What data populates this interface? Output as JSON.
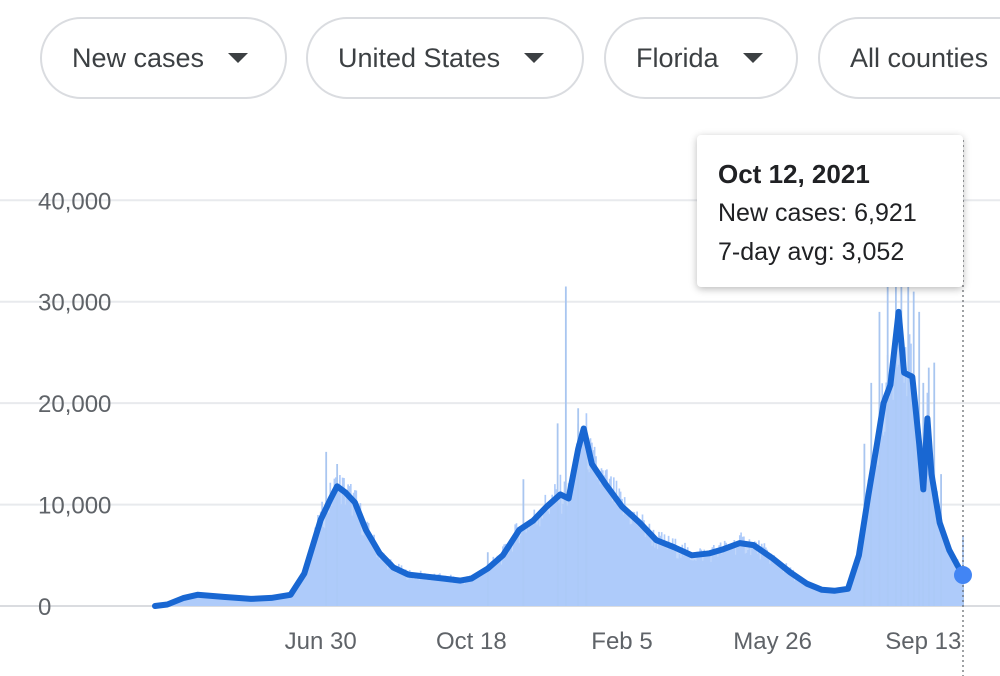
{
  "filters": [
    {
      "label": "New cases"
    },
    {
      "label": "United States"
    },
    {
      "label": "Florida"
    },
    {
      "label": "All counties"
    }
  ],
  "tooltip": {
    "date": "Oct 12, 2021",
    "new_cases_text": "New cases: 6,921",
    "avg_text": "7-day avg: 3,052"
  },
  "colors": {
    "line": "#1967d2",
    "bars": "#aecbfa",
    "grid": "#e8eaed",
    "marker": "#4285f4"
  },
  "chart_data": {
    "type": "bar",
    "title": "",
    "xlabel": "",
    "ylabel": "",
    "ylim": [
      0,
      42000
    ],
    "yticks": [
      0,
      10000,
      20000,
      30000,
      40000
    ],
    "ytick_labels": [
      "0",
      "10,000",
      "20,000",
      "30,000",
      "40,000"
    ],
    "xlim": [
      "2020-03-01",
      "2021-10-12"
    ],
    "xticks": [
      {
        "date": "2020-06-30",
        "label": "Jun 30"
      },
      {
        "date": "2020-10-18",
        "label": "Oct 18"
      },
      {
        "date": "2021-02-05",
        "label": "Feb 5"
      },
      {
        "date": "2021-05-26",
        "label": "May 26"
      },
      {
        "date": "2021-09-13",
        "label": "Sep 13"
      }
    ],
    "series": [
      {
        "kind": "line",
        "points": [
          [
            "2020-03-01",
            0
          ],
          [
            "2020-03-10",
            150
          ],
          [
            "2020-03-22",
            800
          ],
          [
            "2020-04-01",
            1100
          ],
          [
            "2020-04-20",
            900
          ],
          [
            "2020-05-10",
            700
          ],
          [
            "2020-05-25",
            800
          ],
          [
            "2020-06-08",
            1100
          ],
          [
            "2020-06-18",
            3200
          ],
          [
            "2020-06-30",
            8500
          ],
          [
            "2020-07-07",
            10500
          ],
          [
            "2020-07-12",
            11800
          ],
          [
            "2020-07-18",
            11200
          ],
          [
            "2020-07-25",
            10200
          ],
          [
            "2020-08-02",
            7500
          ],
          [
            "2020-08-12",
            5200
          ],
          [
            "2020-08-22",
            3800
          ],
          [
            "2020-09-02",
            3100
          ],
          [
            "2020-09-15",
            2900
          ],
          [
            "2020-09-28",
            2700
          ],
          [
            "2020-10-10",
            2500
          ],
          [
            "2020-10-18",
            2700
          ],
          [
            "2020-10-30",
            3700
          ],
          [
            "2020-11-10",
            5000
          ],
          [
            "2020-11-22",
            7500
          ],
          [
            "2020-12-02",
            8400
          ],
          [
            "2020-12-12",
            9800
          ],
          [
            "2020-12-22",
            11000
          ],
          [
            "2020-12-28",
            10600
          ],
          [
            "2021-01-04",
            15500
          ],
          [
            "2021-01-08",
            17500
          ],
          [
            "2021-01-14",
            14000
          ],
          [
            "2021-01-24",
            12000
          ],
          [
            "2021-02-05",
            9800
          ],
          [
            "2021-02-18",
            8200
          ],
          [
            "2021-03-02",
            6500
          ],
          [
            "2021-03-15",
            5800
          ],
          [
            "2021-03-28",
            5000
          ],
          [
            "2021-04-10",
            5200
          ],
          [
            "2021-04-20",
            5600
          ],
          [
            "2021-05-02",
            6200
          ],
          [
            "2021-05-12",
            6000
          ],
          [
            "2021-05-26",
            4700
          ],
          [
            "2021-06-08",
            3300
          ],
          [
            "2021-06-20",
            2200
          ],
          [
            "2021-07-01",
            1600
          ],
          [
            "2021-07-10",
            1500
          ],
          [
            "2021-07-20",
            1700
          ],
          [
            "2021-07-28",
            5000
          ],
          [
            "2021-08-04",
            11000
          ],
          [
            "2021-08-10",
            15800
          ],
          [
            "2021-08-15",
            20000
          ],
          [
            "2021-08-20",
            21800
          ],
          [
            "2021-08-26",
            29000
          ],
          [
            "2021-08-30",
            23000
          ],
          [
            "2021-09-05",
            22600
          ],
          [
            "2021-09-10",
            16000
          ],
          [
            "2021-09-13",
            11500
          ],
          [
            "2021-09-16",
            18500
          ],
          [
            "2021-09-19",
            13000
          ],
          [
            "2021-09-25",
            8200
          ],
          [
            "2021-10-02",
            5500
          ],
          [
            "2021-10-08",
            4000
          ],
          [
            "2021-10-12",
            3052
          ]
        ]
      },
      {
        "kind": "bar",
        "spikes": [
          [
            "2020-07-04",
            15200
          ],
          [
            "2020-07-12",
            14000
          ],
          [
            "2020-10-30",
            5300
          ],
          [
            "2020-11-25",
            12500
          ],
          [
            "2020-12-20",
            18000
          ],
          [
            "2020-12-26",
            31500
          ],
          [
            "2021-01-04",
            19500
          ],
          [
            "2021-01-10",
            17000
          ],
          [
            "2021-08-01",
            16000
          ],
          [
            "2021-08-06",
            22000
          ],
          [
            "2021-08-12",
            29000
          ],
          [
            "2021-08-18",
            33000
          ],
          [
            "2021-08-24",
            39000
          ],
          [
            "2021-08-28",
            34000
          ],
          [
            "2021-09-02",
            33000
          ],
          [
            "2021-09-06",
            31000
          ],
          [
            "2021-09-10",
            29000
          ],
          [
            "2021-09-13",
            22000
          ],
          [
            "2021-09-17",
            23500
          ],
          [
            "2021-09-21",
            24000
          ],
          [
            "2021-09-26",
            13000
          ],
          [
            "2021-10-12",
            6921
          ]
        ]
      }
    ]
  }
}
